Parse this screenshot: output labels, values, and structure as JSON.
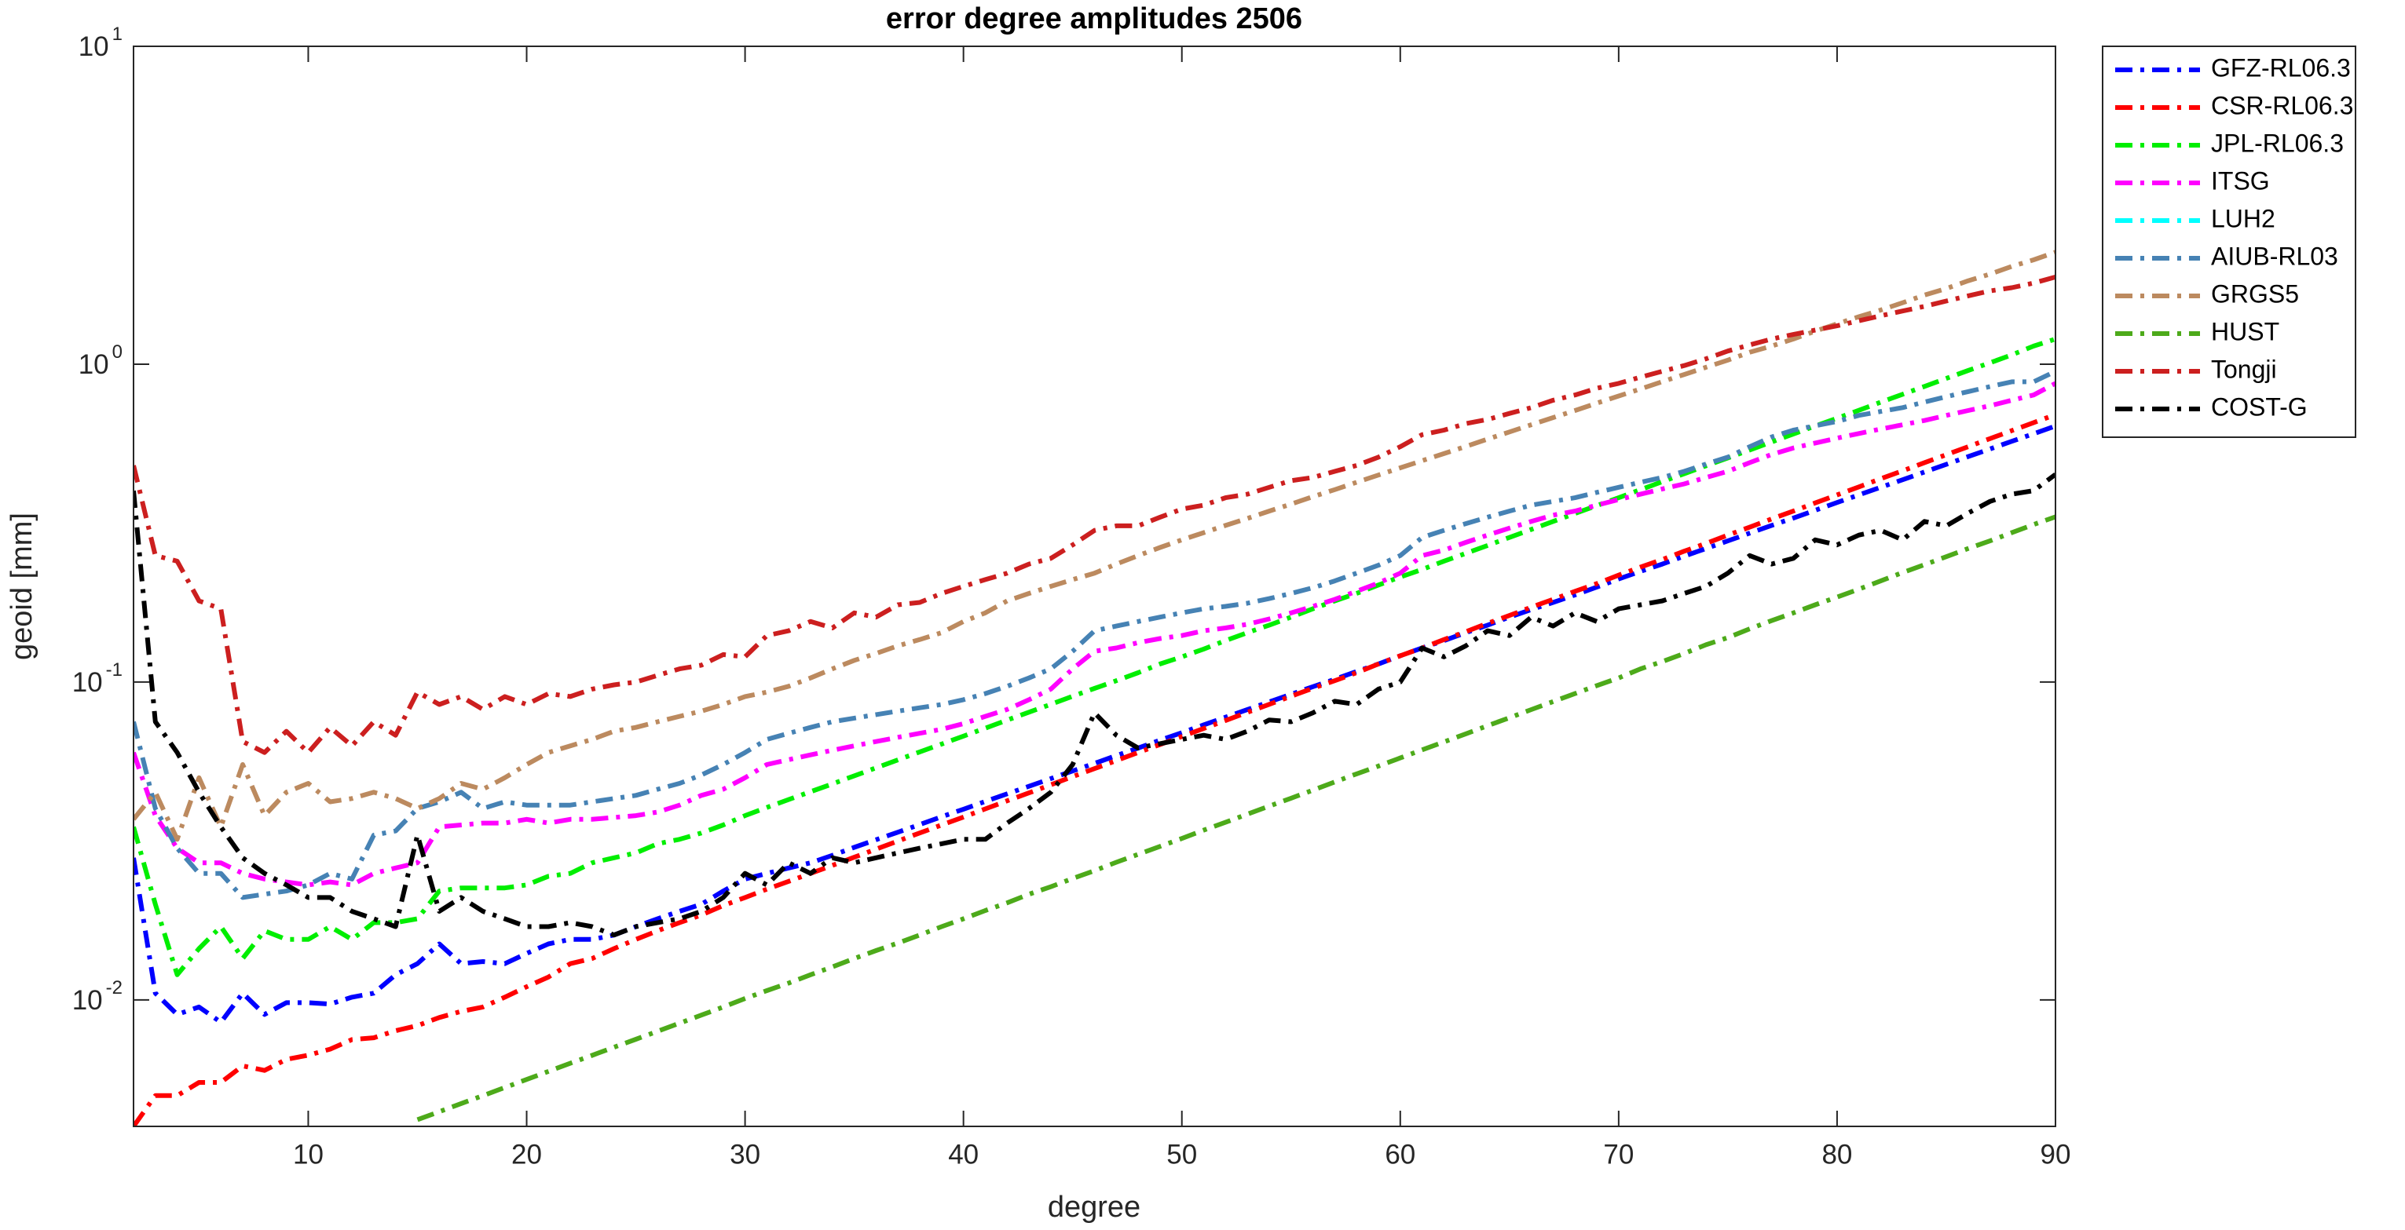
{
  "chart_data": {
    "type": "line",
    "title": "error degree amplitudes 2506",
    "x_label": "degree",
    "y_label": "geoid [mm]",
    "y_scale": "log",
    "grid": false,
    "legend": "northeastoutside",
    "xlim": [
      2,
      90
    ],
    "xticks": [
      10,
      20,
      30,
      40,
      50,
      60,
      70,
      80,
      90
    ],
    "ylim": [
      0.004,
      10
    ],
    "yticks": [
      {
        "value": 0.01,
        "label": "10",
        "exponent": "-2"
      },
      {
        "value": 0.1,
        "label": "10",
        "exponent": "-1"
      },
      {
        "value": 1,
        "label": "10",
        "exponent": "0"
      },
      {
        "value": 10,
        "label": "10",
        "exponent": "1"
      }
    ],
    "x": [
      2,
      3,
      4,
      5,
      6,
      7,
      8,
      9,
      10,
      11,
      12,
      13,
      14,
      15,
      16,
      17,
      18,
      19,
      20,
      21,
      22,
      23,
      24,
      25,
      26,
      27,
      28,
      29,
      30,
      31,
      32,
      33,
      34,
      35,
      36,
      37,
      38,
      39,
      40,
      41,
      42,
      43,
      44,
      45,
      46,
      47,
      48,
      49,
      50,
      51,
      52,
      53,
      54,
      55,
      56,
      57,
      58,
      59,
      60,
      61,
      62,
      63,
      64,
      65,
      66,
      67,
      68,
      69,
      70,
      71,
      72,
      73,
      74,
      75,
      76,
      77,
      78,
      79,
      80,
      81,
      82,
      83,
      84,
      85,
      86,
      87,
      88,
      89,
      90
    ],
    "series": [
      {
        "name": "GFZ-RL06.3",
        "color": "#0000ff",
        "values": [
          0.028,
          0.0105,
          0.009,
          0.0095,
          0.0085,
          0.0105,
          0.009,
          0.0098,
          0.0098,
          0.0097,
          0.0102,
          0.0105,
          0.012,
          0.013,
          0.015,
          0.013,
          0.0132,
          0.013,
          0.014,
          0.015,
          0.0155,
          0.0155,
          0.016,
          0.017,
          0.018,
          0.019,
          0.02,
          0.022,
          0.024,
          0.025,
          0.026,
          0.027,
          0.0285,
          0.0302,
          0.0319,
          0.0337,
          0.0356,
          0.0377,
          0.0398,
          0.0421,
          0.0445,
          0.047,
          0.0497,
          0.0525,
          0.0555,
          0.0587,
          0.062,
          0.0656,
          0.0693,
          0.0733,
          0.0775,
          0.0819,
          0.0866,
          0.0915,
          0.0967,
          0.102,
          0.108,
          0.114,
          0.121,
          0.128,
          0.135,
          0.143,
          0.151,
          0.16,
          0.169,
          0.178,
          0.188,
          0.199,
          0.211,
          0.223,
          0.235,
          0.249,
          0.263,
          0.278,
          0.294,
          0.311,
          0.328,
          0.347,
          0.367,
          0.388,
          0.41,
          0.433,
          0.458,
          0.484,
          0.512,
          0.541,
          0.572,
          0.604,
          0.639
        ]
      },
      {
        "name": "CSR-RL06.3",
        "color": "#ff0000",
        "values": [
          0.004,
          0.005,
          0.005,
          0.0055,
          0.0055,
          0.0062,
          0.006,
          0.0065,
          0.0067,
          0.007,
          0.0075,
          0.0076,
          0.008,
          0.0083,
          0.0088,
          0.0092,
          0.0095,
          0.0102,
          0.011,
          0.0118,
          0.013,
          0.0135,
          0.0145,
          0.0155,
          0.0165,
          0.0175,
          0.0185,
          0.0198,
          0.021,
          0.0223,
          0.0236,
          0.025,
          0.0265,
          0.0281,
          0.0298,
          0.0316,
          0.0335,
          0.0355,
          0.0376,
          0.0399,
          0.0423,
          0.0448,
          0.0475,
          0.0504,
          0.0534,
          0.0566,
          0.06,
          0.0636,
          0.0674,
          0.0714,
          0.0757,
          0.0803,
          0.0851,
          0.0902,
          0.0956,
          0.101,
          0.107,
          0.114,
          0.121,
          0.128,
          0.136,
          0.144,
          0.153,
          0.162,
          0.172,
          0.182,
          0.193,
          0.204,
          0.217,
          0.23,
          0.243,
          0.258,
          0.273,
          0.29,
          0.307,
          0.326,
          0.345,
          0.366,
          0.388,
          0.411,
          0.436,
          0.462,
          0.49,
          0.519,
          0.55,
          0.583,
          0.618,
          0.655,
          0.694
        ]
      },
      {
        "name": "JPL-RL06.3",
        "color": "#00ee00",
        "values": [
          0.035,
          0.02,
          0.012,
          0.0145,
          0.017,
          0.0135,
          0.0165,
          0.0155,
          0.0155,
          0.017,
          0.0155,
          0.0175,
          0.0175,
          0.018,
          0.022,
          0.0225,
          0.0225,
          0.0225,
          0.023,
          0.0245,
          0.025,
          0.027,
          0.028,
          0.029,
          0.031,
          0.032,
          0.0335,
          0.0355,
          0.038,
          0.0403,
          0.0427,
          0.0452,
          0.0478,
          0.0507,
          0.0537,
          0.0569,
          0.0603,
          0.0638,
          0.0676,
          0.0716,
          0.0759,
          0.0804,
          0.0851,
          0.0902,
          0.0955,
          0.101,
          0.107,
          0.114,
          0.12,
          0.127,
          0.135,
          0.143,
          0.151,
          0.16,
          0.17,
          0.18,
          0.19,
          0.202,
          0.214,
          0.226,
          0.24,
          0.254,
          0.269,
          0.285,
          0.302,
          0.32,
          0.339,
          0.359,
          0.38,
          0.403,
          0.427,
          0.452,
          0.479,
          0.507,
          0.537,
          0.569,
          0.603,
          0.639,
          0.676,
          0.716,
          0.759,
          0.804,
          0.851,
          0.902,
          0.955,
          1.01,
          1.07,
          1.14,
          1.2
        ]
      },
      {
        "name": "ITSG",
        "color": "#ff00ff",
        "values": [
          0.06,
          0.038,
          0.03,
          0.027,
          0.027,
          0.025,
          0.024,
          0.0235,
          0.023,
          0.0235,
          0.023,
          0.025,
          0.026,
          0.027,
          0.035,
          0.0355,
          0.036,
          0.036,
          0.037,
          0.036,
          0.037,
          0.037,
          0.0375,
          0.038,
          0.039,
          0.041,
          0.044,
          0.046,
          0.05,
          0.055,
          0.057,
          0.059,
          0.061,
          0.063,
          0.065,
          0.067,
          0.069,
          0.071,
          0.074,
          0.078,
          0.082,
          0.088,
          0.095,
          0.11,
          0.125,
          0.128,
          0.133,
          0.137,
          0.14,
          0.145,
          0.148,
          0.152,
          0.158,
          0.165,
          0.173,
          0.182,
          0.193,
          0.205,
          0.22,
          0.25,
          0.26,
          0.275,
          0.29,
          0.305,
          0.32,
          0.335,
          0.345,
          0.36,
          0.375,
          0.39,
          0.405,
          0.42,
          0.44,
          0.46,
          0.49,
          0.52,
          0.545,
          0.565,
          0.585,
          0.605,
          0.625,
          0.645,
          0.665,
          0.69,
          0.715,
          0.74,
          0.77,
          0.8,
          0.87
        ]
      },
      {
        "name": "LUH2",
        "color": "#00ffff",
        "values": [
          null,
          null,
          null,
          null,
          null,
          null,
          null,
          null,
          null,
          null,
          null,
          null,
          null,
          null,
          null,
          null,
          null,
          null,
          null,
          null,
          null,
          null,
          null,
          null,
          null,
          null,
          null,
          null,
          null,
          null,
          null,
          null,
          null,
          null,
          null,
          null,
          null,
          null,
          null,
          null,
          null,
          null,
          null,
          null,
          null,
          null,
          null,
          null,
          null,
          null,
          null,
          null,
          null,
          null,
          null,
          null,
          null,
          null,
          null,
          null,
          null,
          null,
          null,
          null,
          null,
          null,
          null,
          null,
          null,
          null,
          null,
          null,
          null,
          null,
          null,
          null,
          null,
          null,
          null,
          null,
          null,
          null,
          null,
          null,
          null,
          null,
          null,
          null,
          null
        ]
      },
      {
        "name": "AIUB-RL03",
        "color": "#4682b4",
        "values": [
          0.075,
          0.04,
          0.03,
          0.025,
          0.025,
          0.021,
          0.0215,
          0.022,
          0.023,
          0.025,
          0.024,
          0.033,
          0.034,
          0.04,
          0.042,
          0.045,
          0.04,
          0.042,
          0.041,
          0.041,
          0.041,
          0.042,
          0.043,
          0.044,
          0.046,
          0.048,
          0.051,
          0.055,
          0.06,
          0.066,
          0.069,
          0.072,
          0.075,
          0.077,
          0.079,
          0.081,
          0.083,
          0.085,
          0.088,
          0.092,
          0.097,
          0.103,
          0.11,
          0.125,
          0.145,
          0.15,
          0.155,
          0.16,
          0.165,
          0.17,
          0.173,
          0.177,
          0.183,
          0.19,
          0.198,
          0.208,
          0.22,
          0.233,
          0.25,
          0.285,
          0.3,
          0.315,
          0.33,
          0.345,
          0.36,
          0.37,
          0.38,
          0.395,
          0.41,
          0.425,
          0.44,
          0.46,
          0.485,
          0.51,
          0.55,
          0.59,
          0.62,
          0.64,
          0.66,
          0.69,
          0.71,
          0.73,
          0.76,
          0.79,
          0.82,
          0.85,
          0.88,
          0.88,
          0.95
        ]
      },
      {
        "name": "GRGS5",
        "color": "#bc8a5f",
        "values": [
          0.037,
          0.045,
          0.032,
          0.05,
          0.035,
          0.055,
          0.038,
          0.045,
          0.048,
          0.042,
          0.043,
          0.045,
          0.043,
          0.04,
          0.043,
          0.048,
          0.046,
          0.05,
          0.055,
          0.06,
          0.063,
          0.066,
          0.07,
          0.072,
          0.075,
          0.078,
          0.081,
          0.085,
          0.09,
          0.093,
          0.097,
          0.103,
          0.11,
          0.117,
          0.123,
          0.13,
          0.136,
          0.143,
          0.155,
          0.165,
          0.18,
          0.19,
          0.2,
          0.21,
          0.22,
          0.235,
          0.25,
          0.265,
          0.28,
          0.295,
          0.311,
          0.327,
          0.345,
          0.363,
          0.383,
          0.403,
          0.425,
          0.448,
          0.472,
          0.497,
          0.523,
          0.551,
          0.581,
          0.612,
          0.645,
          0.679,
          0.715,
          0.754,
          0.794,
          0.836,
          0.881,
          0.928,
          0.978,
          1.03,
          1.09,
          1.14,
          1.2,
          1.27,
          1.34,
          1.41,
          1.48,
          1.56,
          1.65,
          1.73,
          1.83,
          1.92,
          2.03,
          2.13,
          2.25
        ]
      },
      {
        "name": "HUST",
        "color": "#4daa1a",
        "values": [
          null,
          null,
          null,
          null,
          null,
          null,
          null,
          null,
          null,
          null,
          null,
          null,
          null,
          0.0042,
          0.00445,
          0.00472,
          0.005,
          0.0053,
          0.00562,
          0.00596,
          0.00632,
          0.00669,
          0.0071,
          0.00752,
          0.00797,
          0.00845,
          0.00896,
          0.0095,
          0.0101,
          0.0107,
          0.0113,
          0.012,
          0.0127,
          0.0135,
          0.0143,
          0.0151,
          0.016,
          0.017,
          0.018,
          0.0191,
          0.0202,
          0.0215,
          0.0227,
          0.0241,
          0.0255,
          0.0271,
          0.0287,
          0.0304,
          0.0322,
          0.0342,
          0.0362,
          0.0384,
          0.0407,
          0.0431,
          0.0457,
          0.0485,
          0.0514,
          0.0544,
          0.0577,
          0.0612,
          0.0648,
          0.0687,
          0.0729,
          0.0772,
          0.0819,
          0.0868,
          0.092,
          0.0975,
          0.103,
          0.11,
          0.116,
          0.123,
          0.131,
          0.138,
          0.147,
          0.156,
          0.165,
          0.175,
          0.185,
          0.196,
          0.208,
          0.221,
          0.234,
          0.248,
          0.263,
          0.278,
          0.295,
          0.313,
          0.331
        ]
      },
      {
        "name": "Tongji",
        "color": "#cc1f1f",
        "values": [
          0.48,
          0.25,
          0.24,
          0.18,
          0.17,
          0.065,
          0.06,
          0.07,
          0.06,
          0.072,
          0.063,
          0.075,
          0.068,
          0.093,
          0.085,
          0.09,
          0.082,
          0.09,
          0.085,
          0.092,
          0.09,
          0.095,
          0.098,
          0.1,
          0.105,
          0.11,
          0.113,
          0.122,
          0.12,
          0.14,
          0.145,
          0.155,
          0.148,
          0.165,
          0.16,
          0.175,
          0.178,
          0.19,
          0.2,
          0.21,
          0.22,
          0.235,
          0.245,
          0.27,
          0.3,
          0.31,
          0.31,
          0.33,
          0.35,
          0.36,
          0.38,
          0.39,
          0.41,
          0.43,
          0.44,
          0.46,
          0.48,
          0.51,
          0.55,
          0.6,
          0.62,
          0.65,
          0.67,
          0.7,
          0.73,
          0.77,
          0.8,
          0.84,
          0.87,
          0.91,
          0.95,
          0.99,
          1.04,
          1.1,
          1.15,
          1.2,
          1.24,
          1.28,
          1.32,
          1.37,
          1.42,
          1.47,
          1.52,
          1.58,
          1.64,
          1.7,
          1.74,
          1.8,
          1.88
        ]
      },
      {
        "name": "COST-G",
        "color": "#000000",
        "values": [
          0.4,
          0.075,
          0.06,
          0.045,
          0.035,
          0.028,
          0.025,
          0.023,
          0.021,
          0.021,
          0.019,
          0.018,
          0.017,
          0.033,
          0.019,
          0.021,
          0.019,
          0.018,
          0.017,
          0.017,
          0.0175,
          0.017,
          0.016,
          0.017,
          0.0175,
          0.018,
          0.019,
          0.021,
          0.025,
          0.023,
          0.027,
          0.025,
          0.028,
          0.027,
          0.028,
          0.029,
          0.03,
          0.031,
          0.032,
          0.032,
          0.036,
          0.04,
          0.045,
          0.055,
          0.08,
          0.068,
          0.062,
          0.064,
          0.066,
          0.068,
          0.066,
          0.07,
          0.076,
          0.075,
          0.08,
          0.087,
          0.085,
          0.095,
          0.1,
          0.128,
          0.12,
          0.13,
          0.145,
          0.14,
          0.16,
          0.15,
          0.165,
          0.155,
          0.17,
          0.175,
          0.18,
          0.19,
          0.2,
          0.22,
          0.25,
          0.235,
          0.245,
          0.28,
          0.27,
          0.29,
          0.3,
          0.28,
          0.32,
          0.31,
          0.34,
          0.37,
          0.39,
          0.4,
          0.45
        ]
      }
    ]
  }
}
